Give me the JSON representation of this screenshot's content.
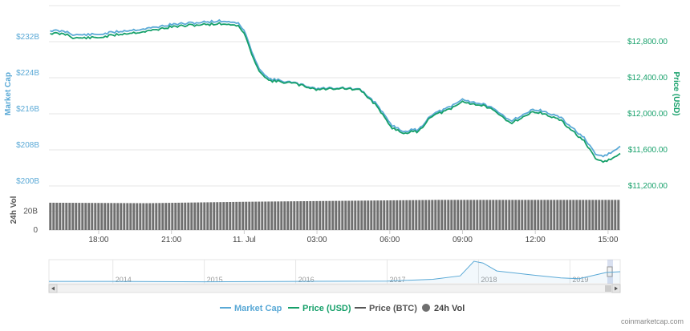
{
  "chart_data": {
    "type": "line",
    "source_credit": "coinmarketcap.com",
    "x_tick_labels": [
      "18:00",
      "21:00",
      "11. Jul",
      "03:00",
      "06:00",
      "09:00",
      "12:00",
      "15:00"
    ],
    "x_tick_hours": [
      18,
      21,
      24,
      27,
      30,
      33,
      36,
      39
    ],
    "x_range_hours": [
      15.95,
      39.5
    ],
    "left_axis": {
      "title": "Market Cap",
      "ticks": [
        "$232B",
        "$224B",
        "$216B",
        "$208B",
        "$200B"
      ],
      "tick_values": [
        232,
        224,
        216,
        208,
        200
      ],
      "range": [
        200,
        240
      ],
      "color": "#5aa9d6"
    },
    "right_axis": {
      "title": "Price (USD)",
      "ticks": [
        "$12,800.00",
        "$12,400.00",
        "$12,000.00",
        "$11,600.00",
        "$11,200.00"
      ],
      "tick_values": [
        12800,
        12400,
        12000,
        11600,
        11200
      ],
      "range": [
        11200,
        13200
      ],
      "color": "#16a06a"
    },
    "volume_axis": {
      "title": "24h Vol",
      "ticks": [
        "20B",
        "0"
      ],
      "tick_values": [
        20,
        0
      ],
      "range": [
        0,
        40
      ],
      "color": "#555555"
    },
    "series": [
      {
        "name": "Market Cap",
        "color": "#5aa9d6",
        "axis": "left",
        "points": [
          [
            16,
            234.5
          ],
          [
            16.7,
            234.2
          ],
          [
            17,
            233.5
          ],
          [
            18,
            233.6
          ],
          [
            19,
            234.4
          ],
          [
            20,
            234.9
          ],
          [
            21,
            235.8
          ],
          [
            22,
            236.2
          ],
          [
            23,
            236.6
          ],
          [
            23.7,
            236.3
          ],
          [
            24,
            234.5
          ],
          [
            24.5,
            227
          ],
          [
            25,
            223.8
          ],
          [
            26,
            222.9
          ],
          [
            27,
            221.6
          ],
          [
            28,
            221.8
          ],
          [
            28.8,
            221.3
          ],
          [
            29.5,
            218
          ],
          [
            30,
            213.8
          ],
          [
            30.5,
            212.2
          ],
          [
            31.2,
            212.5
          ],
          [
            31.7,
            215.8
          ],
          [
            32.5,
            217.5
          ],
          [
            33,
            219.2
          ],
          [
            34,
            217.9
          ],
          [
            35,
            214.5
          ],
          [
            36,
            217.1
          ],
          [
            37,
            215.3
          ],
          [
            38,
            210.7
          ],
          [
            38.5,
            206.8
          ],
          [
            38.9,
            206.7
          ],
          [
            39.5,
            208.6
          ]
        ]
      },
      {
        "name": "Price (USD)",
        "color": "#16a06a",
        "axis": "right",
        "points": [
          [
            16,
            12895
          ],
          [
            16.7,
            12880
          ],
          [
            17,
            12840
          ],
          [
            18,
            12845
          ],
          [
            19,
            12888
          ],
          [
            20,
            12915
          ],
          [
            21,
            12965
          ],
          [
            22,
            12985
          ],
          [
            23,
            13000
          ],
          [
            23.7,
            12985
          ],
          [
            24,
            12895
          ],
          [
            24.5,
            12520
          ],
          [
            25,
            12370
          ],
          [
            26,
            12340
          ],
          [
            27,
            12270
          ],
          [
            28,
            12285
          ],
          [
            28.8,
            12260
          ],
          [
            29.5,
            12080
          ],
          [
            30,
            11860
          ],
          [
            30.5,
            11790
          ],
          [
            31.2,
            11805
          ],
          [
            31.7,
            11975
          ],
          [
            32.5,
            12050
          ],
          [
            33,
            12135
          ],
          [
            34,
            12080
          ],
          [
            35,
            11900
          ],
          [
            36,
            12030
          ],
          [
            37,
            11935
          ],
          [
            38,
            11700
          ],
          [
            38.5,
            11490
          ],
          [
            38.9,
            11470
          ],
          [
            39.5,
            11550
          ]
        ]
      },
      {
        "name": "Price (BTC)",
        "color": "#555555",
        "axis": "none",
        "points": []
      },
      {
        "name": "24h Vol",
        "color": "#6f6f6f",
        "axis": "volume",
        "points": [
          [
            16,
            29
          ],
          [
            20,
            28.5
          ],
          [
            24,
            30
          ],
          [
            28,
            31
          ],
          [
            32,
            32
          ],
          [
            36,
            32
          ],
          [
            39.5,
            32
          ]
        ]
      }
    ],
    "navigator": {
      "year_labels": [
        "2014",
        "2015",
        "2016",
        "2017",
        "2018",
        "2019"
      ],
      "year_positions": [
        2014,
        2015,
        2016,
        2017,
        2018,
        2019
      ],
      "range": [
        2013.3,
        2019.55
      ],
      "points": [
        [
          2013.3,
          2
        ],
        [
          2014,
          2
        ],
        [
          2015,
          1
        ],
        [
          2016,
          2
        ],
        [
          2017,
          3
        ],
        [
          2017.5,
          8
        ],
        [
          2017.8,
          18
        ],
        [
          2017.95,
          60
        ],
        [
          2018.05,
          55
        ],
        [
          2018.2,
          32
        ],
        [
          2018.6,
          20
        ],
        [
          2018.9,
          12
        ],
        [
          2019.1,
          10
        ],
        [
          2019.4,
          28
        ],
        [
          2019.55,
          30
        ]
      ]
    },
    "legend": [
      "Market Cap",
      "Price (USD)",
      "Price (BTC)",
      "24h Vol"
    ],
    "grid": true,
    "legend_position": "bottom-center"
  }
}
